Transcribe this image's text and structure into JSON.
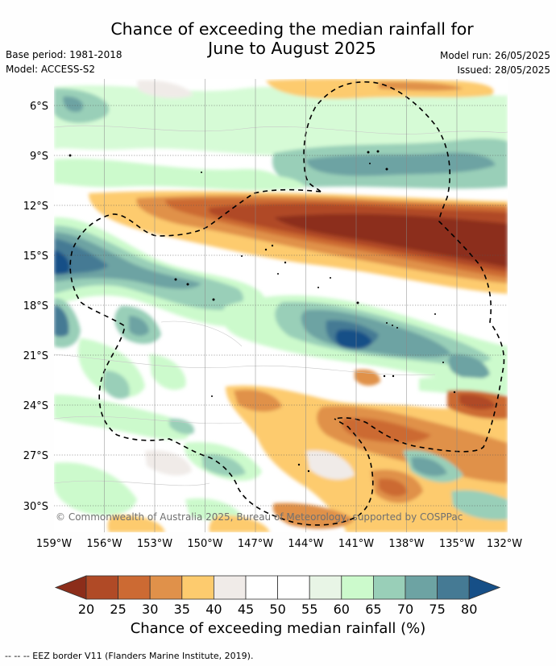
{
  "title": {
    "line1": "Chance of exceeding the median rainfall for",
    "line2": "June to August 2025"
  },
  "meta": {
    "base_period": "Base period: 1981-2018",
    "model": "Model: ACCESS-S2",
    "model_run": "Model run: 26/05/2025",
    "issued": "Issued: 28/05/2025"
  },
  "map": {
    "lat_labels": [
      "6°S",
      "9°S",
      "12°S",
      "15°S",
      "18°S",
      "21°S",
      "24°S",
      "27°S",
      "30°S"
    ],
    "lon_labels": [
      "159°W",
      "156°W",
      "153°W",
      "150°W",
      "147°W",
      "144°W",
      "141°W",
      "138°W",
      "135°W",
      "132°W"
    ],
    "copyright": "© Commonwealth of Australia 2025, Bureau of Meteorology, supported by COSPPac",
    "grid": true
  },
  "colorbar": {
    "labels": [
      "20",
      "25",
      "30",
      "35",
      "40",
      "45",
      "50",
      "55",
      "60",
      "65",
      "70",
      "75",
      "80"
    ],
    "colors": [
      "#8c2d1a",
      "#b04a26",
      "#cc6a33",
      "#e0914a",
      "#fdcb6e",
      "#f0ebe8",
      "#ffffff",
      "#ffffff",
      "#e8f5e6",
      "#ccfacc",
      "#99cfb8",
      "#6da3a3",
      "#457a94",
      "#164f87"
    ],
    "title": "Chance of exceeding median rainfall (%)"
  },
  "legend": {
    "eez": "--  --  -- EEZ border V11 (Flanders Marine Institute, 2019)."
  }
}
